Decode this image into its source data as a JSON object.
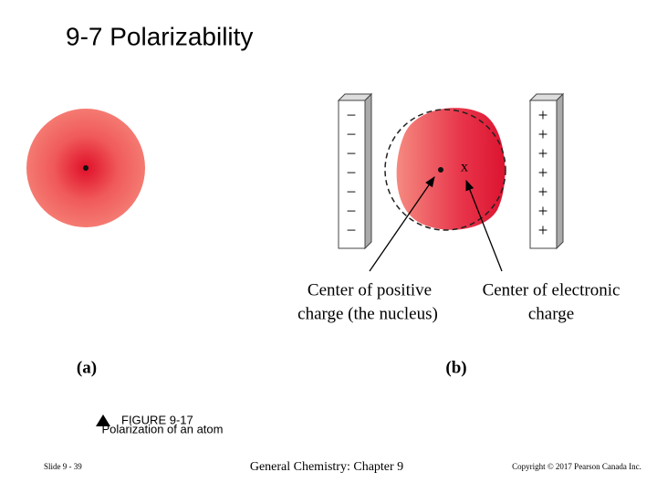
{
  "header": {
    "title": "9-7   Polarizability"
  },
  "figure": {
    "panel_a_label": "(a)",
    "panel_b_label": "(b)",
    "negative_plate": [
      "−",
      "−",
      "−",
      "−",
      "−",
      "−",
      "−"
    ],
    "positive_plate": [
      "+",
      "+",
      "+",
      "+",
      "+",
      "+",
      "+"
    ],
    "electron_center_mark": "x",
    "label_positive": [
      "Center of positive",
      "charge (the nucleus)"
    ],
    "label_electronic": [
      "Center of electronic",
      "charge"
    ],
    "caption_number": "FIGURE 9-17",
    "caption_text": "Polarization of an atom"
  },
  "footer": {
    "slide": "Slide 9 - 39",
    "course": "General Chemistry: Chapter 9",
    "copyright": "Copyright © 2017 Pearson Canada Inc."
  }
}
